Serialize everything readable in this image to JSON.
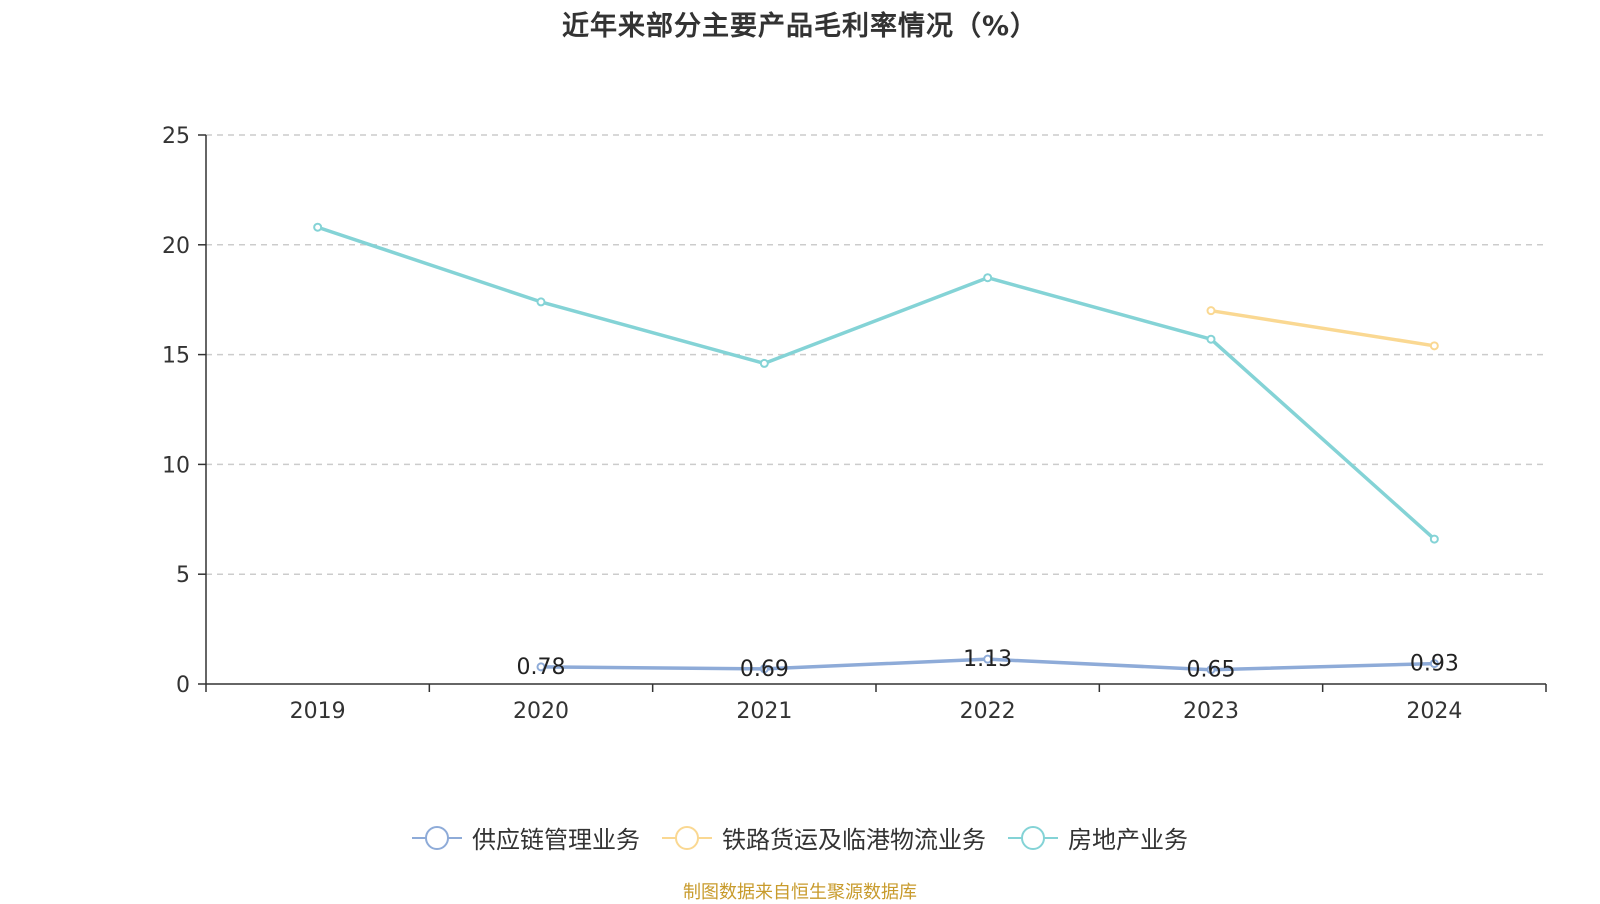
{
  "chart_data": {
    "type": "line",
    "title": "近年来部分主要产品毛利率情况（%）",
    "categories": [
      "2019",
      "2020",
      "2021",
      "2022",
      "2023",
      "2024"
    ],
    "ylim": [
      0,
      25
    ],
    "yticks": [
      0,
      5,
      10,
      15,
      20,
      25
    ],
    "grid": true,
    "legend_position": "bottom",
    "series": [
      {
        "name": "供应链管理业务",
        "color": "#8eabd8",
        "values": [
          null,
          0.78,
          0.69,
          1.13,
          0.65,
          0.93
        ],
        "labels": [
          "",
          "0.78",
          "0.69",
          "1.13",
          "0.65",
          "0.93"
        ]
      },
      {
        "name": "铁路货运及临港物流业务",
        "color": "#fad892",
        "values": [
          null,
          null,
          null,
          null,
          17.0,
          15.4
        ],
        "labels": [
          "",
          "",
          "",
          "",
          "",
          ""
        ]
      },
      {
        "name": "房地产业务",
        "color": "#84d3d6",
        "values": [
          20.8,
          17.4,
          14.6,
          18.5,
          15.7,
          6.6
        ],
        "labels": [
          "",
          "",
          "",
          "",
          "",
          ""
        ]
      }
    ]
  },
  "source_note": "制图数据来自恒生聚源数据库"
}
